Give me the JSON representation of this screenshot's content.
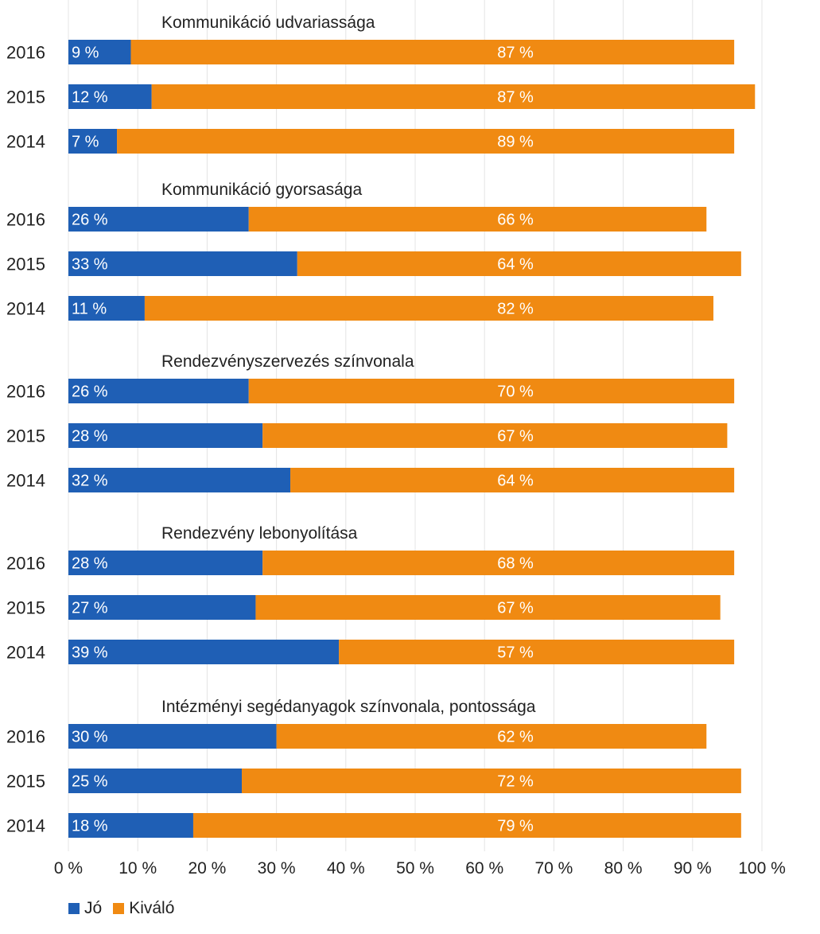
{
  "chart_data": {
    "type": "bar",
    "orientation": "horizontal",
    "stacked": true,
    "xlim": [
      0,
      100
    ],
    "x_ticks": [
      "0 %",
      "10 %",
      "20 %",
      "30 %",
      "40 %",
      "50 %",
      "60 %",
      "70 %",
      "80 %",
      "90 %",
      "100 %"
    ],
    "legend_position": "bottom-left",
    "grid": true,
    "series": [
      {
        "name": "Jó",
        "color": "#1f5fb5"
      },
      {
        "name": "Kiváló",
        "color": "#f08a12"
      }
    ],
    "groups": [
      {
        "title": "Kommunikáció udvariassága",
        "rows": [
          {
            "year": "2016",
            "values": [
              9,
              87
            ],
            "labels": [
              "9 %",
              "87 %"
            ]
          },
          {
            "year": "2015",
            "values": [
              12,
              87
            ],
            "labels": [
              "12 %",
              "87 %"
            ]
          },
          {
            "year": "2014",
            "values": [
              7,
              89
            ],
            "labels": [
              "7 %",
              "89 %"
            ]
          }
        ]
      },
      {
        "title": "Kommunikáció gyorsasága",
        "rows": [
          {
            "year": "2016",
            "values": [
              26,
              66
            ],
            "labels": [
              "26 %",
              "66 %"
            ]
          },
          {
            "year": "2015",
            "values": [
              33,
              64
            ],
            "labels": [
              "33 %",
              "64 %"
            ]
          },
          {
            "year": "2014",
            "values": [
              11,
              82
            ],
            "labels": [
              "11 %",
              "82 %"
            ]
          }
        ]
      },
      {
        "title": "Rendezvényszervezés színvonala",
        "rows": [
          {
            "year": "2016",
            "values": [
              26,
              70
            ],
            "labels": [
              "26 %",
              "70 %"
            ]
          },
          {
            "year": "2015",
            "values": [
              28,
              67
            ],
            "labels": [
              "28 %",
              "67 %"
            ]
          },
          {
            "year": "2014",
            "values": [
              32,
              64
            ],
            "labels": [
              "32 %",
              "64 %"
            ]
          }
        ]
      },
      {
        "title": "Rendezvény lebonyolítása",
        "rows": [
          {
            "year": "2016",
            "values": [
              28,
              68
            ],
            "labels": [
              "28 %",
              "68 %"
            ]
          },
          {
            "year": "2015",
            "values": [
              27,
              67
            ],
            "labels": [
              "27 %",
              "67 %"
            ]
          },
          {
            "year": "2014",
            "values": [
              39,
              57
            ],
            "labels": [
              "39 %",
              "57 %"
            ]
          }
        ]
      },
      {
        "title": "Intézményi segédanyagok színvonala, pontossága",
        "rows": [
          {
            "year": "2016",
            "values": [
              30,
              62
            ],
            "labels": [
              "30 %",
              "62 %"
            ]
          },
          {
            "year": "2015",
            "values": [
              25,
              72
            ],
            "labels": [
              "25 %",
              "72 %"
            ]
          },
          {
            "year": "2014",
            "values": [
              18,
              79
            ],
            "labels": [
              "18 %",
              "79 %"
            ]
          }
        ]
      }
    ]
  },
  "legend": {
    "items": [
      {
        "label": "Jó",
        "color": "#1f5fb5"
      },
      {
        "label": "Kiváló",
        "color": "#f08a12"
      }
    ]
  }
}
